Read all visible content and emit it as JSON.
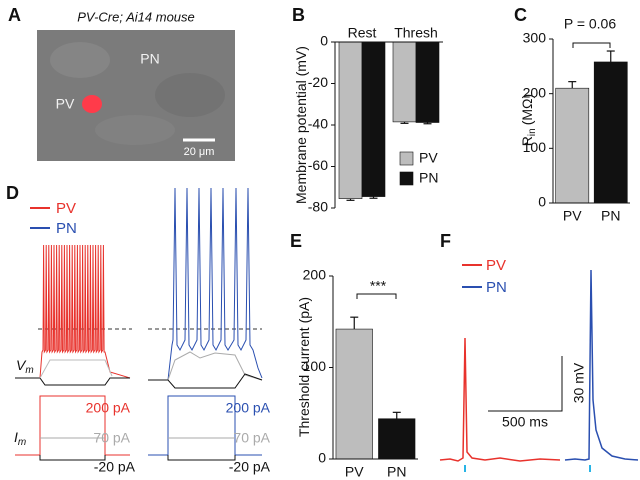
{
  "figure": {
    "panel_labels": [
      "A",
      "B",
      "C",
      "D",
      "E",
      "F"
    ],
    "a": {
      "title": "PV-Cre; Ai14 mouse",
      "labels": [
        "PN",
        "PV"
      ],
      "scale_bar": "20 μm"
    },
    "d": {
      "legend": [
        "PV",
        "PN"
      ],
      "vm": "V",
      "vm_sub": "m",
      "im": "I",
      "im_sub": "m",
      "pv_currents": [
        "200 pA",
        "70 pA",
        "-20 pA"
      ],
      "pn_currents": [
        "200 pA",
        "70 pA",
        "-20 pA"
      ]
    },
    "f": {
      "legend": [
        "PV",
        "PN"
      ],
      "time_scale": "500 ms",
      "voltage_scale": "30 mV"
    }
  },
  "chart_data": [
    {
      "type": "bar",
      "ylabel": "Membrane potential (mV)",
      "categories": [
        "Rest",
        "Thresh"
      ],
      "series": [
        {
          "name": "PV",
          "color": "#bdbdbd",
          "values": [
            -75.5,
            -38.5
          ],
          "errors": [
            0.8,
            0.7
          ]
        },
        {
          "name": "PN",
          "color": "#111111",
          "values": [
            -74.5,
            -38.8
          ],
          "errors": [
            0.8,
            0.6
          ]
        }
      ],
      "ylim": [
        -80,
        0
      ],
      "yticks": [
        0,
        -20,
        -40,
        -60,
        -80
      ]
    },
    {
      "type": "bar",
      "ylabel": "R",
      "ylabel_sub": "in",
      "ylabel_unit": "(MΩ)",
      "categories": [
        "PV",
        "PN"
      ],
      "values": [
        210,
        258
      ],
      "errors": [
        12,
        20
      ],
      "colors": [
        "#bdbdbd",
        "#111111"
      ],
      "annotation": "P = 0.06",
      "ylim": [
        0,
        300
      ],
      "yticks": [
        0,
        100,
        200,
        300
      ]
    },
    {
      "type": "bar",
      "ylabel": "Threshold current (pA)",
      "categories": [
        "PV",
        "PN"
      ],
      "values": [
        142,
        44
      ],
      "errors": [
        13,
        7
      ],
      "colors": [
        "#bdbdbd",
        "#111111"
      ],
      "annotation": "***",
      "ylim": [
        0,
        200
      ],
      "yticks": [
        0,
        100,
        200
      ]
    }
  ]
}
